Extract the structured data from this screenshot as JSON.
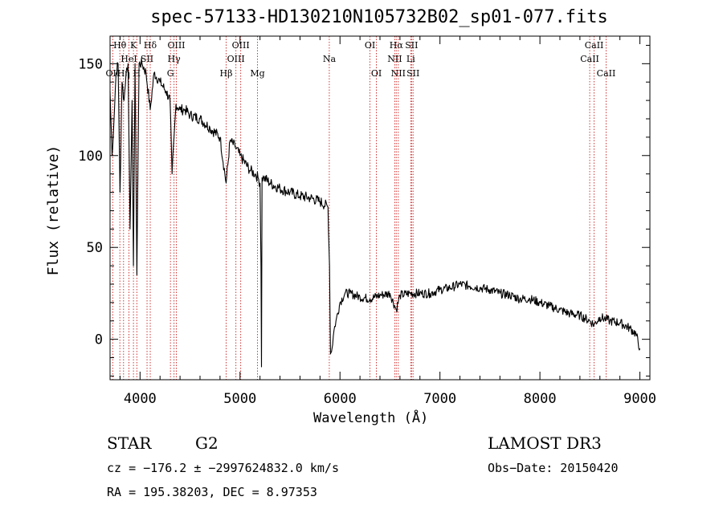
{
  "chart_data": {
    "type": "line",
    "title": "spec-57133-HD130210N105732B02_sp01-077.fits",
    "xlabel": "Wavelength (Å)",
    "ylabel": "Flux (relative)",
    "xlim": [
      3700,
      9100
    ],
    "ylim": [
      -22,
      165
    ],
    "xticks": [
      4000,
      5000,
      6000,
      7000,
      8000,
      9000
    ],
    "yticks": [
      0,
      50,
      100,
      150
    ],
    "line_color": "#000000",
    "marker_color": "#cc2222",
    "series": [
      {
        "x": [
          3700,
          3720,
          3740,
          3760,
          3780,
          3800,
          3820,
          3840,
          3860,
          3880,
          3900,
          3920,
          3934,
          3950,
          3968,
          3990,
          4020,
          4060,
          4102,
          4140,
          4200,
          4260,
          4300,
          4320,
          4340,
          4360,
          4400,
          4450,
          4500,
          4600,
          4700,
          4800,
          4861,
          4900,
          4950,
          5000,
          5100,
          5150,
          5180,
          5200,
          5210,
          5215,
          5220,
          5240,
          5300,
          5400,
          5500,
          5600,
          5700,
          5800,
          5880,
          5895,
          5905,
          5920,
          5940,
          5960,
          6000,
          6050,
          6100,
          6200,
          6300,
          6400,
          6500,
          6563,
          6600,
          6700,
          6800,
          6900,
          7000,
          7100,
          7200,
          7300,
          7400,
          7500,
          7600,
          7700,
          7800,
          7900,
          8000,
          8100,
          8200,
          8300,
          8400,
          8500,
          8542,
          8600,
          8662,
          8700,
          8800,
          8900,
          8960,
          9000
        ],
        "y": [
          135,
          100,
          120,
          145,
          150,
          80,
          140,
          130,
          145,
          150,
          60,
          130,
          40,
          150,
          35,
          150,
          150,
          145,
          125,
          145,
          140,
          135,
          130,
          90,
          110,
          128,
          125,
          125,
          122,
          120,
          115,
          110,
          85,
          108,
          105,
          100,
          92,
          90,
          88,
          85,
          40,
          -15,
          88,
          88,
          85,
          82,
          80,
          78,
          77,
          75,
          72,
          40,
          -8,
          -5,
          5,
          10,
          20,
          25,
          25,
          23,
          22,
          24,
          25,
          16,
          24,
          25,
          25,
          25,
          27,
          28,
          30,
          29,
          28,
          27,
          25,
          24,
          22,
          22,
          20,
          18,
          16,
          14,
          13,
          10,
          8,
          12,
          11,
          10,
          9,
          6,
          3,
          -5
        ]
      }
    ],
    "lines": [
      {
        "wl": 3727,
        "labels": [
          "OII"
        ],
        "rows": [
          3
        ]
      },
      {
        "wl": 3798,
        "labels": [
          "Hθ"
        ],
        "rows": [
          1
        ]
      },
      {
        "wl": 3835,
        "labels": [
          "Hη"
        ],
        "rows": [
          3
        ]
      },
      {
        "wl": 3889,
        "labels": [
          "HeI"
        ],
        "rows": [
          2
        ]
      },
      {
        "wl": 3934,
        "labels": [
          "K"
        ],
        "rows": [
          1
        ]
      },
      {
        "wl": 3968,
        "labels": [
          "H"
        ],
        "rows": [
          3
        ]
      },
      {
        "wl": 4070,
        "labels": [
          "SII"
        ],
        "rows": [
          2
        ]
      },
      {
        "wl": 4102,
        "labels": [
          "Hδ"
        ],
        "rows": [
          1
        ]
      },
      {
        "wl": 4304,
        "labels": [
          "G"
        ],
        "rows": [
          3
        ]
      },
      {
        "wl": 4340,
        "labels": [
          "Hγ"
        ],
        "rows": [
          2
        ]
      },
      {
        "wl": 4363,
        "labels": [
          "OIII"
        ],
        "rows": [
          1
        ]
      },
      {
        "wl": 4861,
        "labels": [
          "Hβ"
        ],
        "rows": [
          3
        ]
      },
      {
        "wl": 4959,
        "labels": [
          "OIII"
        ],
        "rows": [
          2
        ]
      },
      {
        "wl": 5007,
        "labels": [
          "OIII"
        ],
        "rows": [
          1
        ]
      },
      {
        "wl": 5175,
        "labels": [
          "Mg"
        ],
        "rows": [
          3
        ]
      },
      {
        "wl": 5893,
        "labels": [
          "Na"
        ],
        "rows": [
          2
        ]
      },
      {
        "wl": 6300,
        "labels": [
          "OI"
        ],
        "rows": [
          1
        ]
      },
      {
        "wl": 6364,
        "labels": [
          "OI"
        ],
        "rows": [
          3
        ]
      },
      {
        "wl": 6548,
        "labels": [
          "NII"
        ],
        "rows": [
          2
        ]
      },
      {
        "wl": 6563,
        "labels": [
          "Hα"
        ],
        "rows": [
          1
        ]
      },
      {
        "wl": 6583,
        "labels": [
          "NII"
        ],
        "rows": [
          3
        ]
      },
      {
        "wl": 6708,
        "labels": [
          "Li"
        ],
        "rows": [
          2
        ]
      },
      {
        "wl": 6716,
        "labels": [
          "SII"
        ],
        "rows": [
          1
        ]
      },
      {
        "wl": 6731,
        "labels": [
          "SII"
        ],
        "rows": [
          3
        ]
      },
      {
        "wl": 8498,
        "labels": [
          "CaII"
        ],
        "rows": [
          2
        ]
      },
      {
        "wl": 8542,
        "labels": [
          "CaII"
        ],
        "rows": [
          1
        ]
      },
      {
        "wl": 8662,
        "labels": [
          "CaII"
        ],
        "rows": [
          3
        ]
      }
    ]
  },
  "info": {
    "object": "STAR",
    "subclass": "G2",
    "survey": "LAMOST DR3",
    "cz": "cz = −176.2 ± −2997624832.0 km/s",
    "obs_date": "Obs−Date: 20150420",
    "radec": "RA = 195.38203, DEC =    8.97353"
  }
}
